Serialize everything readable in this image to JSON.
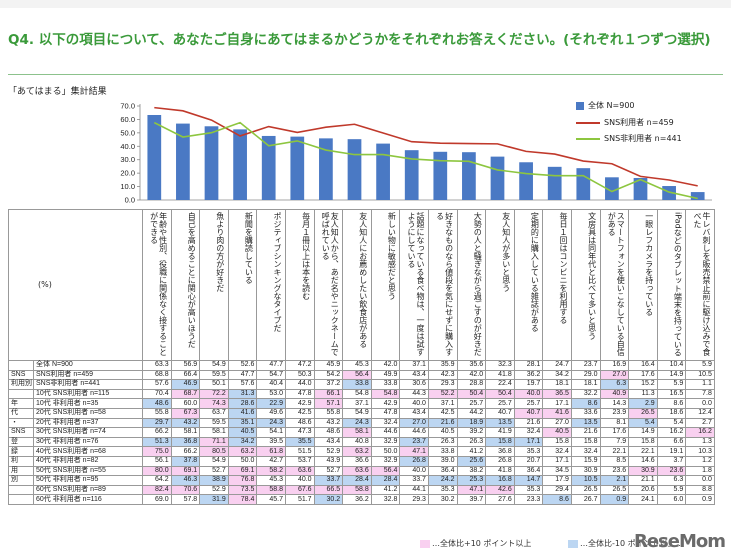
{
  "question": "Q4. 以下の項目について、あなたご自身にあてはまるかどうかをそれぞれお答えください。(それぞれ１つずつ選択)",
  "subtitle": "「あてはまる」集計結果",
  "percent_label": "(%)",
  "footer_pos": "…全体比+10 ポイント以上",
  "footer_neg": "…全体比-10 ポイント以上…",
  "watermark": "ReseMom",
  "colors": {
    "bar": "#4a79c4",
    "sns": "#c0392b",
    "nonsns": "#8dc63f",
    "pos": "#f9d0f0",
    "neg": "#bcd6f2"
  },
  "chart_data": {
    "type": "bar",
    "ylim": [
      0,
      70
    ],
    "yticks": [
      "0.0",
      "10.0",
      "20.0",
      "30.0",
      "40.0",
      "50.0",
      "60.0",
      "70.0"
    ],
    "legend": [
      "全体 N=900",
      "SNS利用者 n=459",
      "SNS非利用者 n=441"
    ],
    "categories": [
      "年齢や性別、役職に関係なく接することができる",
      "自己を高めることに関心が高いほうだ",
      "魚より肉の方が好きだ",
      "新聞を購読している",
      "ポジティブシンキングなタイプだ",
      "毎月１冊以上は本を読む",
      "友人知人から、あだ名やニックネームで呼ばれている",
      "友人知人にお薦めしたい飲食店がある",
      "新しい物に敏感だと思う",
      "話題になっている食べ物は、一度は試すようにしている",
      "好きなものなら値段を気にせずに購入する",
      "大勢の人と騒ぎながら過ごすのが好きだ",
      "友人知人が多いと思う",
      "定期的に購入している雑誌がある",
      "毎日１回はコンビニを利用する",
      "文房具は同年代と比べて多いと思う",
      "スマートフォンを使いこなしている自信がある",
      "一眼レフカメラを持っている",
      "iPadなどのタブレット端末を持っている",
      "牛レバ刺しを販売禁止前に駆け込みで食べた"
    ],
    "series": [
      {
        "name": "全体 N=900",
        "values": [
          63.3,
          56.9,
          54.9,
          52.6,
          47.7,
          47.2,
          45.9,
          45.3,
          42.0,
          37.1,
          35.9,
          35.6,
          32.3,
          28.1,
          24.7,
          23.7,
          16.9,
          16.4,
          10.4,
          5.9
        ]
      },
      {
        "name": "SNS利用者 n=459",
        "values": [
          68.8,
          66.4,
          59.5,
          47.7,
          54.7,
          50.3,
          54.2,
          56.4,
          49.9,
          43.4,
          42.3,
          42.0,
          41.8,
          36.2,
          34.2,
          29.0,
          27.0,
          17.6,
          14.9,
          10.5
        ]
      },
      {
        "name": "SNS非利用者 n=441",
        "values": [
          57.6,
          46.9,
          50.1,
          57.6,
          40.4,
          44.0,
          37.2,
          33.8,
          33.8,
          30.6,
          29.3,
          28.8,
          22.4,
          19.7,
          18.1,
          18.1,
          6.3,
          15.2,
          5.9,
          1.1
        ]
      }
    ]
  },
  "table": {
    "rows": [
      {
        "g1": "",
        "g2": "全体 N=900",
        "vals": [
          "63.3",
          "56.9",
          "54.9",
          "52.6",
          "47.7",
          "47.2",
          "45.9",
          "45.3",
          "42.0",
          "37.1",
          "35.9",
          "35.6",
          "32.3",
          "28.1",
          "24.7",
          "23.7",
          "16.9",
          "16.4",
          "10.4",
          "5.9"
        ]
      },
      {
        "g1": "SNS",
        "g2": "SNS利用者 n=459",
        "vals": [
          "68.8",
          "66.4",
          "59.5",
          "47.7",
          "54.7",
          "50.3",
          "54.2",
          "56.4",
          "49.9",
          "43.4",
          "42.3",
          "42.0",
          "41.8",
          "36.2",
          "34.2",
          "29.0",
          "27.0",
          "17.6",
          "14.9",
          "10.5"
        ]
      },
      {
        "g1": "利用別",
        "g2": "SNS非利用者 n=441",
        "vals": [
          "57.6",
          "46.9",
          "50.1",
          "57.6",
          "40.4",
          "44.0",
          "37.2",
          "33.8",
          "33.8",
          "30.6",
          "29.3",
          "28.8",
          "22.4",
          "19.7",
          "18.1",
          "18.1",
          "6.3",
          "15.2",
          "5.9",
          "1.1"
        ]
      },
      {
        "g1": "",
        "g2": "10代 SNS利用者 n=115",
        "vals": [
          "70.4",
          "68.7",
          "72.2",
          "31.3",
          "53.0",
          "47.8",
          "66.1",
          "54.8",
          "54.8",
          "44.3",
          "52.2",
          "50.4",
          "50.4",
          "40.0",
          "36.5",
          "32.2",
          "40.9",
          "11.3",
          "16.5",
          "7.8"
        ]
      },
      {
        "g1": "年",
        "g2": "10代 非利用者 n=35",
        "vals": [
          "48.6",
          "60.0",
          "74.3",
          "28.6",
          "22.9",
          "42.9",
          "57.1",
          "37.1",
          "42.9",
          "40.0",
          "37.1",
          "25.7",
          "25.7",
          "25.7",
          "17.1",
          "8.6",
          "14.3",
          "2.9",
          "8.6",
          "0.0"
        ]
      },
      {
        "g1": "代",
        "g2": "20代 SNS利用者 n=58",
        "vals": [
          "55.8",
          "67.3",
          "63.7",
          "41.6",
          "49.6",
          "42.5",
          "55.8",
          "54.9",
          "47.8",
          "43.4",
          "42.5",
          "44.2",
          "40.7",
          "40.7",
          "41.6",
          "33.6",
          "23.9",
          "26.5",
          "18.6",
          "12.4"
        ]
      },
      {
        "g1": "・",
        "g2": "20代 非利用者 n=37",
        "vals": [
          "29.7",
          "43.2",
          "59.5",
          "35.1",
          "24.3",
          "48.6",
          "43.2",
          "24.3",
          "32.4",
          "27.0",
          "21.6",
          "18.9",
          "13.5",
          "21.6",
          "27.0",
          "13.5",
          "8.1",
          "5.4",
          "5.4",
          "2.7"
        ]
      },
      {
        "g1": "SNS",
        "g2": "30代 SNS利用者 n=74",
        "vals": [
          "66.2",
          "58.1",
          "58.1",
          "40.5",
          "54.1",
          "47.3",
          "48.6",
          "58.1",
          "44.6",
          "44.6",
          "40.5",
          "39.2",
          "41.9",
          "32.4",
          "40.5",
          "21.6",
          "17.6",
          "14.9",
          "16.2",
          "16.2"
        ]
      },
      {
        "g1": "登",
        "g2": "30代 非利用者 n=76",
        "vals": [
          "51.3",
          "36.8",
          "71.1",
          "34.2",
          "39.5",
          "35.5",
          "43.4",
          "40.8",
          "32.9",
          "23.7",
          "26.3",
          "26.3",
          "15.8",
          "17.1",
          "15.8",
          "15.8",
          "7.9",
          "15.8",
          "6.6",
          "1.3"
        ]
      },
      {
        "g1": "録",
        "g2": "40代 SNS利用者 n=68",
        "vals": [
          "75.0",
          "66.2",
          "80.5",
          "63.2",
          "61.8",
          "51.5",
          "52.9",
          "63.2",
          "50.0",
          "47.1",
          "33.8",
          "41.2",
          "36.8",
          "35.3",
          "32.4",
          "32.4",
          "22.1",
          "22.1",
          "19.1",
          "10.3"
        ]
      },
      {
        "g1": "利",
        "g2": "40代 非利用者 n=82",
        "vals": [
          "56.1",
          "37.8",
          "54.9",
          "50.0",
          "42.7",
          "53.7",
          "43.9",
          "36.6",
          "32.9",
          "26.8",
          "39.0",
          "25.6",
          "26.8",
          "20.7",
          "17.1",
          "15.9",
          "8.5",
          "14.6",
          "3.7",
          "1.2"
        ]
      },
      {
        "g1": "用",
        "g2": "50代 SNS利用者 n=55",
        "vals": [
          "80.0",
          "69.1",
          "52.7",
          "69.1",
          "58.2",
          "63.6",
          "52.7",
          "63.6",
          "56.4",
          "40.0",
          "36.4",
          "38.2",
          "41.8",
          "36.4",
          "34.5",
          "30.9",
          "23.6",
          "30.9",
          "23.6",
          "1.8"
        ]
      },
      {
        "g1": "別",
        "g2": "50代 非利用者 n=95",
        "vals": [
          "64.2",
          "46.3",
          "38.9",
          "76.8",
          "45.3",
          "40.0",
          "33.7",
          "28.4",
          "28.4",
          "33.7",
          "24.2",
          "25.3",
          "16.8",
          "14.7",
          "17.9",
          "10.5",
          "2.1",
          "21.1",
          "6.3",
          "0.0"
        ]
      },
      {
        "g1": "",
        "g2": "60代 SNS利用者 n=89",
        "vals": [
          "82.4",
          "70.6",
          "52.9",
          "73.5",
          "58.8",
          "67.6",
          "66.5",
          "58.8",
          "41.2",
          "44.1",
          "35.3",
          "47.1",
          "42.6",
          "35.3",
          "29.4",
          "26.5",
          "26.5",
          "20.6",
          "5.9",
          "8.8"
        ]
      },
      {
        "g1": "",
        "g2": "60代 非利用者 n=116",
        "vals": [
          "69.0",
          "57.8",
          "31.9",
          "78.4",
          "45.7",
          "51.7",
          "30.2",
          "36.2",
          "32.8",
          "29.3",
          "30.2",
          "39.7",
          "27.6",
          "23.3",
          "8.6",
          "26.7",
          "0.9",
          "24.1",
          "6.0",
          "0.9"
        ]
      }
    ]
  }
}
